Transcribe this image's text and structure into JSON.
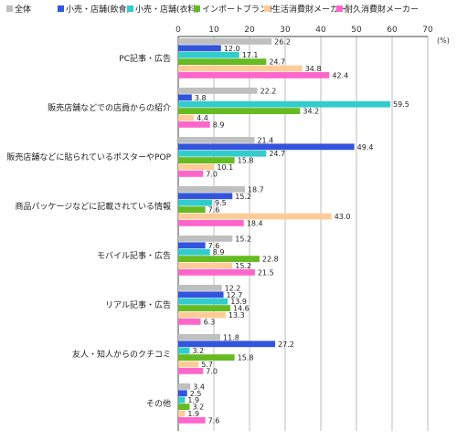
{
  "chart_data": {
    "type": "bar",
    "orientation": "horizontal",
    "unit_label": "(%)",
    "xlim": [
      0,
      70
    ],
    "xticks": [
      0,
      10,
      20,
      30,
      40,
      50,
      60,
      70
    ],
    "grid": true,
    "legend_position": "top",
    "categories": [
      "PC記事・広告",
      "販売店舗などでの店員からの紹介",
      "販売店舗などに貼られているポスターやPOP",
      "商品パッケージなどに記載されている情報",
      "モバイル記事・広告",
      "リアル記事・広告",
      "友人・知人からのクチコミ",
      "その他"
    ],
    "series": [
      {
        "name": "全体",
        "color": "#BFBFBF",
        "values": [
          26.2,
          22.2,
          21.4,
          18.7,
          15.2,
          12.2,
          11.8,
          3.4
        ]
      },
      {
        "name": "小売・店舗(飲食)",
        "color": "#3355DD",
        "values": [
          12.0,
          3.8,
          49.4,
          15.2,
          7.6,
          12.7,
          27.2,
          2.5
        ]
      },
      {
        "name": "小売・店舗(衣料)",
        "color": "#33CCCC",
        "values": [
          17.1,
          59.5,
          24.7,
          9.5,
          8.9,
          13.9,
          3.2,
          1.9
        ]
      },
      {
        "name": "インポートブランド",
        "color": "#66BB22",
        "values": [
          24.7,
          34.2,
          15.8,
          7.6,
          22.8,
          14.6,
          15.8,
          3.2
        ]
      },
      {
        "name": "生活消費財メーカー",
        "color": "#FFCC99",
        "values": [
          34.8,
          4.4,
          10.1,
          43.0,
          15.2,
          13.3,
          5.7,
          1.9
        ]
      },
      {
        "name": "耐久消費財メーカー",
        "color": "#FF66CC",
        "values": [
          42.4,
          8.9,
          7.0,
          18.4,
          21.5,
          6.3,
          7.0,
          7.6
        ]
      }
    ]
  }
}
